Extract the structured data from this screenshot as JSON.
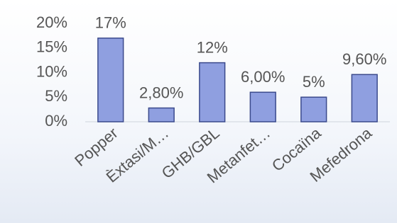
{
  "chart_data": {
    "type": "bar",
    "categories": [
      "Popper",
      "Èxtasi/M…",
      "GHB/GBL",
      "Metanfet…",
      "Cocaïna",
      "Mefedrona"
    ],
    "values": [
      17,
      2.8,
      12,
      6,
      5,
      9.6
    ],
    "value_labels": [
      "17%",
      "2,80%",
      "12%",
      "6,00%",
      "5%",
      "9,60%"
    ],
    "color": "#8f9fe0",
    "ylim": [
      0,
      20
    ],
    "yticks": [
      {
        "value": 0,
        "label": "0%"
      },
      {
        "value": 5,
        "label": "5%"
      },
      {
        "value": 10,
        "label": "10%"
      },
      {
        "value": 15,
        "label": "15%"
      },
      {
        "value": 20,
        "label": "20%"
      }
    ],
    "grid": false
  }
}
